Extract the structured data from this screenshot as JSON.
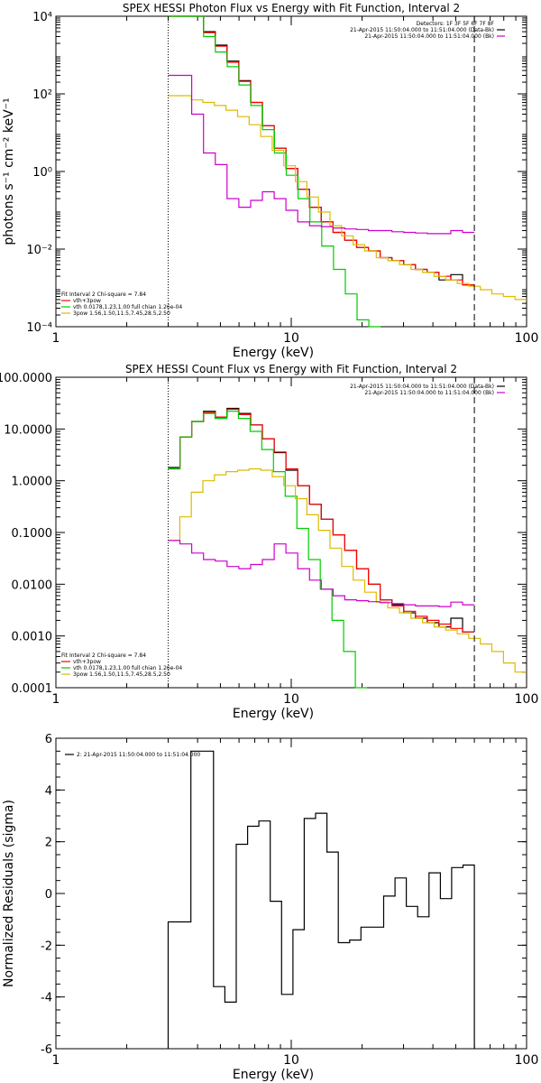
{
  "chart_data": [
    {
      "type": "line",
      "title": "SPEX HESSI Photon Flux vs Energy with Fit Function, Interval 2",
      "xlabel": "Energy (keV)",
      "ylabel": "photons s⁻¹ cm⁻² keV⁻¹",
      "xscale": "log",
      "yscale": "log",
      "xlim": [
        1,
        100
      ],
      "ylim": [
        0.0001,
        10000
      ],
      "x_ticks": [
        {
          "v": 1,
          "label": "1"
        },
        {
          "v": 10,
          "label": "10"
        },
        {
          "v": 100,
          "label": "100"
        }
      ],
      "y_ticks": [
        {
          "v": 0.0001,
          "label": "10⁻⁴"
        },
        {
          "v": 0.01,
          "label": "10⁻²"
        },
        {
          "v": 1,
          "label": "10⁰"
        },
        {
          "v": 100,
          "label": "10²"
        },
        {
          "v": 10000,
          "label": "10⁴"
        }
      ],
      "vlines": [
        {
          "x": 3,
          "style": "dotted",
          "color": "#000000"
        },
        {
          "x": 60,
          "style": "dashed",
          "color": "#000000"
        }
      ],
      "legend_top_right": [
        {
          "text": "Detectors: 1F 3F 5F 6F 7F 8F",
          "color": null
        },
        {
          "text": "21-Apr-2015 11:50:04.000 to 11:51:04.000 (Data-Bk)",
          "color": "#000000"
        },
        {
          "text": "21-Apr-2015 11:50:04.000 to 11:51:04.000 (Bk)",
          "color": "#cc00cc"
        }
      ],
      "legend_bottom_left": [
        {
          "text": "Fit Interval 2   Chi-square = 7.84",
          "color": null
        },
        {
          "text": "vth+3pow",
          "color": "#ff0000"
        },
        {
          "text": "vth 0.0178,1.23,1.00  full chian 1.26e-04",
          "color": "#00cc00"
        },
        {
          "text": "3pow 1.56,1.50,11.5,7.45,28.5,2.50",
          "color": "#ddbb00"
        }
      ],
      "series": [
        {
          "color": "#000000",
          "x_start": 3.0,
          "x_end": 60.0,
          "values": [
            10000,
            10000,
            10000,
            4000,
            1800,
            700,
            220,
            60,
            15,
            4,
            1.2,
            0.35,
            0.12,
            0.05,
            0.027,
            0.017,
            0.011,
            0.009,
            0.006,
            0.005,
            0.004,
            0.003,
            0.0025,
            0.0016,
            0.0022,
            0.0012
          ]
        },
        {
          "color": "#ff0000",
          "x_start": 3.0,
          "x_end": 60.0,
          "values": [
            10000,
            10000,
            10000,
            3800,
            1700,
            650,
            210,
            60,
            15,
            4,
            1.2,
            0.35,
            0.12,
            0.05,
            0.027,
            0.017,
            0.011,
            0.009,
            0.006,
            0.005,
            0.004,
            0.003,
            0.0025,
            0.002,
            0.0016,
            0.0012
          ]
        },
        {
          "color": "#00cc00",
          "x_start": 3.0,
          "x_end": 24.0,
          "values": [
            10000,
            10000,
            10000,
            3000,
            1200,
            500,
            170,
            50,
            12,
            3,
            0.8,
            0.2,
            0.05,
            0.012,
            0.003,
            0.0007,
            0.00015,
            5e-05
          ]
        },
        {
          "color": "#ddbb00",
          "x_start": 3.0,
          "x_end": 100.0,
          "values": [
            90,
            90,
            70,
            60,
            50,
            38,
            26,
            16,
            8,
            3.5,
            1.4,
            0.55,
            0.22,
            0.09,
            0.04,
            0.022,
            0.013,
            0.009,
            0.006,
            0.005,
            0.004,
            0.003,
            0.0025,
            0.002,
            0.0016,
            0.0013,
            0.0011,
            0.0009,
            0.0007,
            0.0006,
            0.0005
          ]
        },
        {
          "color": "#cc00cc",
          "x_start": 3.0,
          "x_end": 60.0,
          "values": [
            300,
            300,
            30,
            3,
            1.5,
            0.2,
            0.12,
            0.18,
            0.3,
            0.2,
            0.1,
            0.05,
            0.04,
            0.038,
            0.035,
            0.033,
            0.032,
            0.03,
            0.03,
            0.028,
            0.027,
            0.026,
            0.025,
            0.025,
            0.03,
            0.027
          ]
        }
      ]
    },
    {
      "type": "line",
      "title": "SPEX HESSI Count Flux vs Energy with Fit Function, Interval 2",
      "xlabel": "Energy (keV)",
      "ylabel": "",
      "xscale": "log",
      "yscale": "log",
      "xlim": [
        1,
        100
      ],
      "ylim": [
        0.0001,
        100
      ],
      "x_ticks": [
        {
          "v": 1,
          "label": "1"
        },
        {
          "v": 10,
          "label": "10"
        },
        {
          "v": 100,
          "label": "100"
        }
      ],
      "y_ticks": [
        {
          "v": 0.0001,
          "label": "0.0001"
        },
        {
          "v": 0.001,
          "label": "0.0010"
        },
        {
          "v": 0.01,
          "label": "0.0100"
        },
        {
          "v": 0.1,
          "label": "0.1000"
        },
        {
          "v": 1,
          "label": "1.0000"
        },
        {
          "v": 10,
          "label": "10.0000"
        },
        {
          "v": 100,
          "label": "100.0000"
        }
      ],
      "vlines": [
        {
          "x": 3,
          "style": "dotted",
          "color": "#000000"
        },
        {
          "x": 60,
          "style": "dashed",
          "color": "#000000"
        }
      ],
      "legend_top_right": [
        {
          "text": "21-Apr-2015 11:50:04.000 to 11:51:04.000 (Data-Bk)",
          "color": "#000000"
        },
        {
          "text": "21-Apr-2015 11:50:04.000 to 11:51:04.000 (Bk)",
          "color": "#cc00cc"
        }
      ],
      "legend_bottom_left": [
        {
          "text": "Fit Interval 2   Chi-square = 7.84",
          "color": null
        },
        {
          "text": "vth+3pow",
          "color": "#ff0000"
        },
        {
          "text": "vth 0.0178,1.23,1.00  full chian 1.26e-04",
          "color": "#00cc00"
        },
        {
          "text": "3pow 1.56,1.50,11.5,7.45,28.5,2.50",
          "color": "#ddbb00"
        }
      ],
      "series": [
        {
          "color": "#000000",
          "x_start": 3.0,
          "x_end": 60.0,
          "values": [
            1.8,
            7.0,
            14,
            22,
            17,
            25,
            20,
            12,
            6.5,
            3.5,
            1.6,
            0.8,
            0.35,
            0.18,
            0.09,
            0.045,
            0.02,
            0.01,
            0.005,
            0.004,
            0.0028,
            0.0022,
            0.0018,
            0.0015,
            0.0022,
            0.0012
          ]
        },
        {
          "color": "#ff0000",
          "x_start": 3.0,
          "x_end": 60.0,
          "values": [
            1.7,
            7.0,
            14,
            21,
            17,
            24,
            19,
            12,
            6.5,
            3.6,
            1.7,
            0.8,
            0.35,
            0.18,
            0.09,
            0.045,
            0.02,
            0.01,
            0.005,
            0.0038,
            0.003,
            0.0024,
            0.002,
            0.0017,
            0.0014,
            0.0012
          ]
        },
        {
          "color": "#00cc00",
          "x_start": 3.0,
          "x_end": 21.0,
          "values": [
            1.7,
            7.0,
            14,
            20,
            16,
            22,
            16,
            9,
            4,
            1.5,
            0.5,
            0.12,
            0.03,
            0.008,
            0.002,
            0.0005,
            0.0001
          ]
        },
        {
          "color": "#ddbb00",
          "x_start": 3.0,
          "x_end": 100.0,
          "values": [
            0.07,
            0.2,
            0.6,
            1.0,
            1.3,
            1.5,
            1.6,
            1.7,
            1.6,
            1.2,
            0.8,
            0.45,
            0.22,
            0.11,
            0.05,
            0.022,
            0.012,
            0.007,
            0.0045,
            0.0035,
            0.0028,
            0.0022,
            0.0018,
            0.0015,
            0.0013,
            0.0011,
            0.0009,
            0.0007,
            0.0005,
            0.0003,
            0.0002
          ]
        },
        {
          "color": "#cc00cc",
          "x_start": 3.0,
          "x_end": 60.0,
          "values": [
            0.07,
            0.06,
            0.04,
            0.03,
            0.028,
            0.022,
            0.02,
            0.024,
            0.03,
            0.06,
            0.04,
            0.02,
            0.012,
            0.008,
            0.006,
            0.005,
            0.0048,
            0.0046,
            0.0044,
            0.0042,
            0.004,
            0.0038,
            0.0038,
            0.0037,
            0.0045,
            0.004
          ]
        }
      ]
    },
    {
      "type": "line",
      "title": "",
      "xlabel": "Energy (keV)",
      "ylabel": "Normalized Residuals (sigma)",
      "xscale": "log",
      "yscale": "linear",
      "xlim": [
        1,
        100
      ],
      "ylim": [
        -6,
        6
      ],
      "x_ticks": [
        {
          "v": 1,
          "label": "1"
        },
        {
          "v": 10,
          "label": "10"
        },
        {
          "v": 100,
          "label": "100"
        }
      ],
      "y_ticks": [
        {
          "v": -6,
          "label": "-6"
        },
        {
          "v": -4,
          "label": "-4"
        },
        {
          "v": -2,
          "label": "-2"
        },
        {
          "v": 0,
          "label": "0"
        },
        {
          "v": 2,
          "label": "2"
        },
        {
          "v": 4,
          "label": "4"
        },
        {
          "v": 6,
          "label": "6"
        }
      ],
      "vlines": [],
      "legend_top_left": [
        {
          "text": "2: 21-Apr-2015 11:50:04.000 to 11:51:04.000",
          "color": "#000000"
        }
      ],
      "series": [
        {
          "color": "#000000",
          "x_start": 3.0,
          "x_end": 60.0,
          "drop_to_bottom": true,
          "values": [
            -1.1,
            -1.1,
            5.5,
            5.5,
            -3.6,
            -4.2,
            1.9,
            2.6,
            2.8,
            -0.3,
            -3.9,
            -1.4,
            2.9,
            3.1,
            1.6,
            -1.9,
            -1.8,
            -1.3,
            -1.3,
            -0.1,
            0.6,
            -0.5,
            -0.9,
            0.8,
            -0.2,
            1.0,
            1.1
          ]
        }
      ]
    }
  ]
}
